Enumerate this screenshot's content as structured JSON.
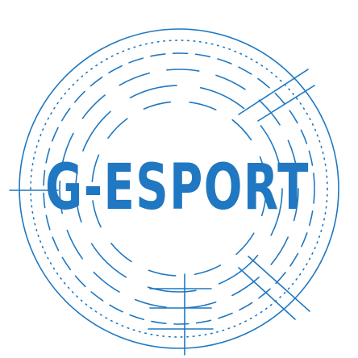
{
  "logo": {
    "wordmark": "G-ESPORT",
    "brand_color": "#1f78c1"
  }
}
